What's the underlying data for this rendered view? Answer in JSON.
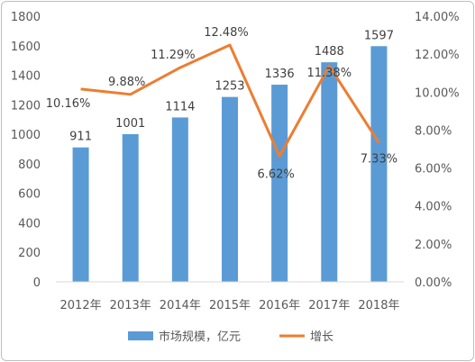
{
  "chart_data": {
    "type": "bar+line",
    "categories": [
      "2012年",
      "2013年",
      "2014年",
      "2015年",
      "2016年",
      "2017年",
      "2018年"
    ],
    "series": [
      {
        "name": "市场规模，亿元",
        "type": "bar",
        "axis": "left",
        "color": "#5b9bd5",
        "values": [
          911,
          1001,
          1114,
          1253,
          1336,
          1488,
          1597
        ],
        "labels": [
          "911",
          "1001",
          "1114",
          "1253",
          "1336",
          "1488",
          "1597"
        ]
      },
      {
        "name": "增长",
        "type": "line",
        "axis": "right",
        "color": "#ed7d31",
        "values": [
          10.16,
          9.88,
          11.29,
          12.48,
          6.62,
          11.38,
          7.33
        ],
        "labels": [
          "10.16%",
          "9.88%",
          "11.29%",
          "12.48%",
          "6.62%",
          "11.38%",
          "7.33%"
        ]
      }
    ],
    "y_left": {
      "min": 0,
      "max": 1800,
      "ticks": [
        "0",
        "200",
        "400",
        "600",
        "800",
        "1000",
        "1200",
        "1400",
        "1600",
        "1800"
      ]
    },
    "y_right": {
      "min": 0,
      "max": 14,
      "ticks": [
        "0.00%",
        "2.00%",
        "4.00%",
        "6.00%",
        "8.00%",
        "10.00%",
        "12.00%",
        "14.00%"
      ]
    },
    "grid": false,
    "legend": "bottom"
  }
}
